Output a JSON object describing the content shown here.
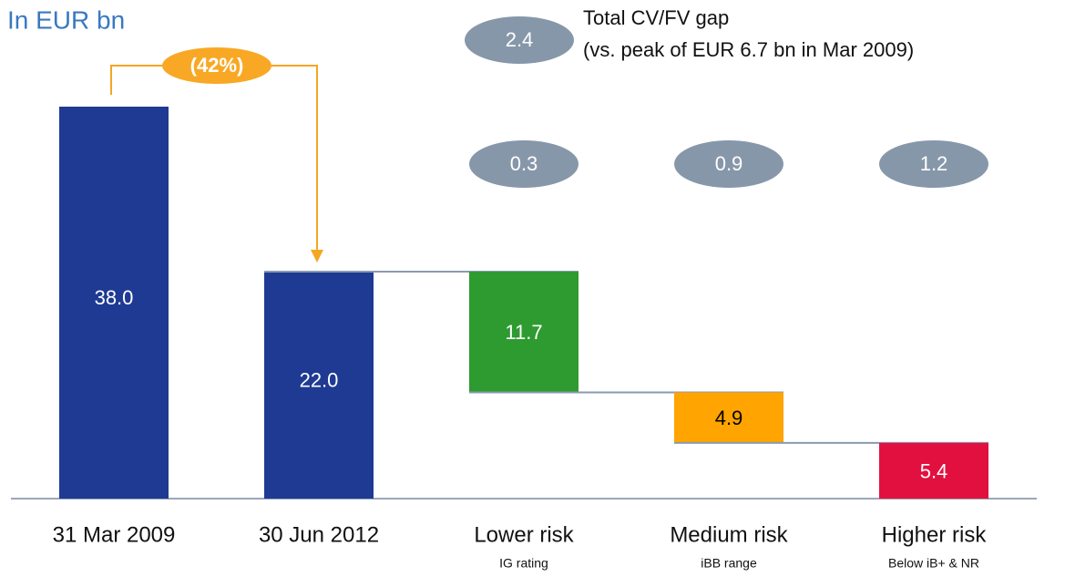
{
  "chart_data": {
    "type": "waterfall",
    "title": "In EUR bn",
    "change_label": "(42%)",
    "totals": {
      "categories": [
        "31 Mar 2009",
        "30 Jun 2012"
      ],
      "values": [
        38.0,
        22.0
      ],
      "value_labels": [
        "38.0",
        "22.0"
      ],
      "color": "#1f3a93"
    },
    "breakdown": {
      "categories": [
        "Lower risk",
        "Medium risk",
        "Higher risk"
      ],
      "sublabels": [
        "IG rating",
        "iBB range",
        "Below iB+ & NR"
      ],
      "values": [
        11.7,
        4.9,
        5.4
      ],
      "value_labels": [
        "11.7",
        "4.9",
        "5.4"
      ],
      "colors": [
        "#2e9b30",
        "#ffa400",
        "#e2103f"
      ],
      "label_colors": [
        "#ffffff",
        "#000000",
        "#ffffff"
      ],
      "gaps": [
        0.3,
        0.9,
        1.2
      ]
    },
    "total_gap": {
      "value": 2.4,
      "label": "Total CV/FV gap",
      "note": "(vs. peak of EUR 6.7 bn in Mar 2009)"
    }
  }
}
